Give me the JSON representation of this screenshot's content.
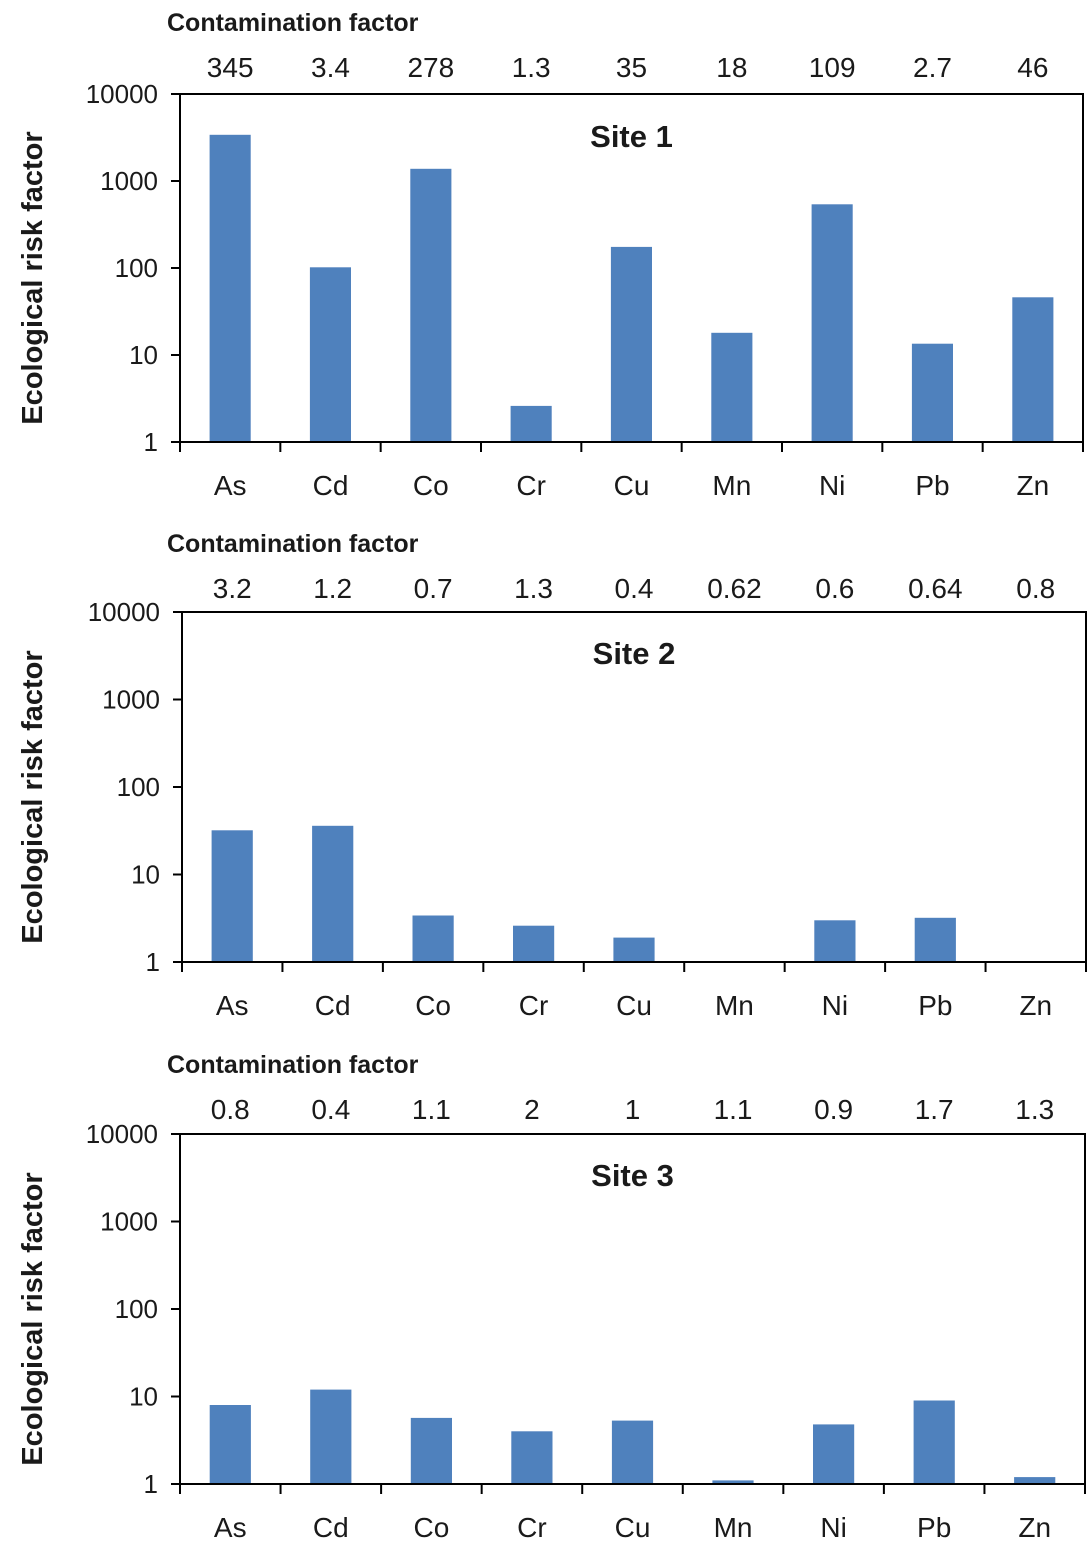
{
  "chart_data": [
    {
      "type": "bar",
      "title": "Site 1",
      "ylabel": "Ecological  risk factor",
      "yscale": "log",
      "ylim": [
        1,
        10000
      ],
      "yticks": [
        "1",
        "10",
        "100",
        "1000",
        "10000"
      ],
      "categories": [
        "As",
        "Cd",
        "Co",
        "Cr",
        "Cu",
        "Mn",
        "Ni",
        "Pb",
        "Zn"
      ],
      "values": [
        3400,
        102,
        1380,
        2.6,
        175,
        18,
        540,
        13.5,
        46
      ],
      "top_label": "Contamination factor",
      "top_values": [
        "345",
        "3.4",
        "278",
        "1.3",
        "35",
        "18",
        "109",
        "2.7",
        "46"
      ],
      "bar_color": "#4f81bd",
      "grid": false
    },
    {
      "type": "bar",
      "title": "Site 2",
      "ylabel": "Ecological  risk factor",
      "yscale": "log",
      "ylim": [
        1,
        10000
      ],
      "yticks": [
        "1",
        "10",
        "100",
        "1000",
        "10000"
      ],
      "categories": [
        "As",
        "Cd",
        "Co",
        "Cr",
        "Cu",
        "Mn",
        "Ni",
        "Pb",
        "Zn"
      ],
      "values": [
        32,
        36,
        3.4,
        2.6,
        1.9,
        1,
        3.0,
        3.2,
        1
      ],
      "top_label": "Contamination factor",
      "top_values": [
        "3.2",
        "1.2",
        "0.7",
        "1.3",
        "0.4",
        "0.62",
        "0.6",
        "0.64",
        "0.8"
      ],
      "bar_color": "#4f81bd",
      "grid": false
    },
    {
      "type": "bar",
      "title": "Site 3",
      "ylabel": "Ecological  risk factor",
      "yscale": "log",
      "ylim": [
        1,
        10000
      ],
      "yticks": [
        "1",
        "10",
        "100",
        "1000",
        "10000"
      ],
      "categories": [
        "As",
        "Cd",
        "Co",
        "Cr",
        "Cu",
        "Mn",
        "Ni",
        "Pb",
        "Zn"
      ],
      "values": [
        8,
        12,
        5.7,
        4,
        5.3,
        1.1,
        4.8,
        9,
        1.2
      ],
      "top_label": "Contamination factor",
      "top_values": [
        "0.8",
        "0.4",
        "1.1",
        "2",
        "1",
        "1.1",
        "0.9",
        "1.7",
        "1.3"
      ],
      "bar_color": "#4f81bd",
      "grid": false
    }
  ]
}
